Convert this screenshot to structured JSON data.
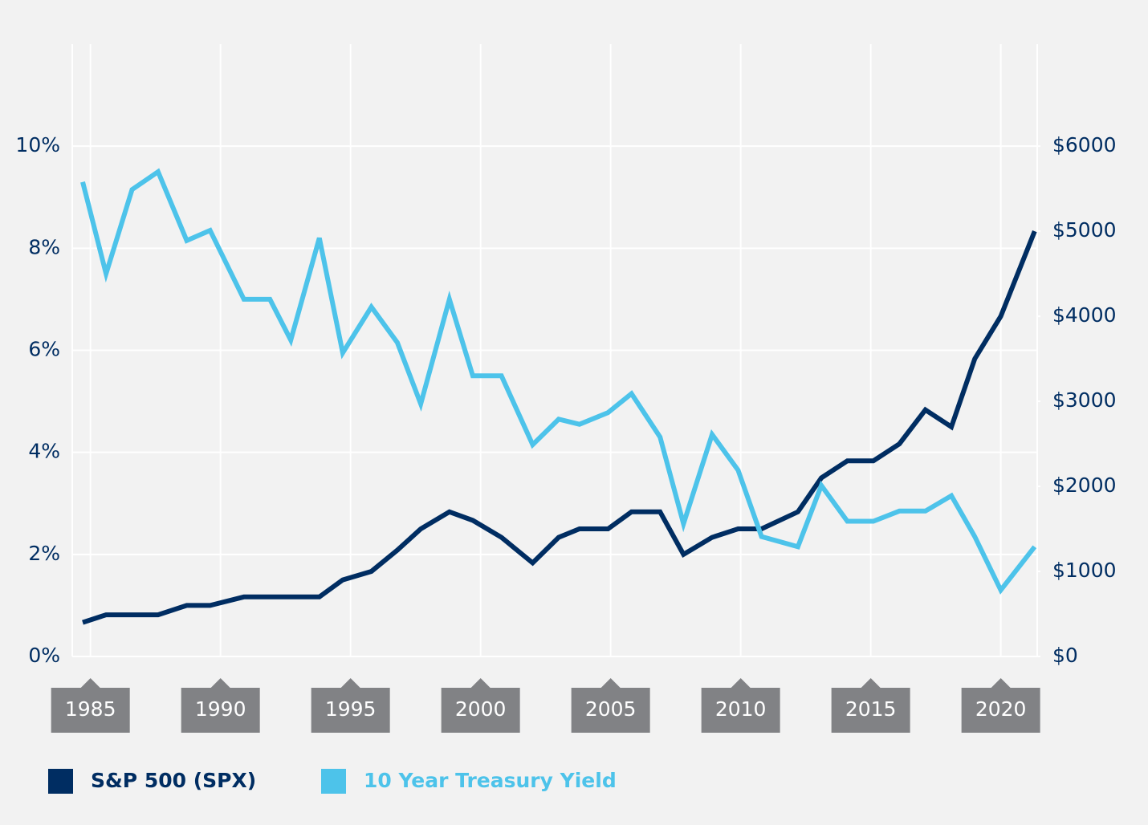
{
  "chart_data": {
    "type": "line",
    "x": [
      1984.7,
      1985.6,
      1986.6,
      1987.6,
      1988.7,
      1989.6,
      1990.9,
      1991.9,
      1992.7,
      1993.8,
      1994.7,
      1995.8,
      1996.8,
      1997.7,
      1998.8,
      1999.7,
      2000.8,
      2002.0,
      2003.0,
      2003.8,
      2004.9,
      2005.8,
      2006.9,
      2007.8,
      2008.9,
      2009.9,
      2010.8,
      2012.2,
      2013.1,
      2014.1,
      2015.1,
      2016.1,
      2017.1,
      2018.1,
      2019.0,
      2020.0,
      2021.3
    ],
    "series": [
      {
        "name": "S&P 500 (SPX)",
        "color": "#002d62",
        "axis": "y2",
        "values": [
          400,
          490,
          490,
          490,
          600,
          600,
          700,
          700,
          700,
          700,
          900,
          1000,
          1250,
          1500,
          1700,
          1600,
          1400,
          1100,
          1400,
          1500,
          1500,
          1700,
          1700,
          1200,
          1400,
          1500,
          1500,
          1700,
          2100,
          2300,
          2300,
          2500,
          2900,
          2700,
          3500,
          4000,
          5000
        ]
      },
      {
        "name": "10 Year Treasury Yield",
        "color": "#4dc3ea",
        "values": [
          9.3,
          7.5,
          9.15,
          9.5,
          8.15,
          8.35,
          7.0,
          7.0,
          6.2,
          8.2,
          5.95,
          6.85,
          6.15,
          4.95,
          7.0,
          5.5,
          5.5,
          4.15,
          4.65,
          4.55,
          4.78,
          5.15,
          4.3,
          2.6,
          4.35,
          3.65,
          2.35,
          2.15,
          3.35,
          2.65,
          2.65,
          2.85,
          2.85,
          3.15,
          2.35,
          1.3,
          2.15
        ]
      }
    ],
    "xlim": [
      1984.3,
      2021.4
    ],
    "xticks": [
      1985,
      1990,
      1995,
      2000,
      2005,
      2010,
      2015,
      2020
    ],
    "ylim": [
      0,
      12
    ],
    "yticks": [
      {
        "value": 0,
        "label": "0%"
      },
      {
        "value": 2,
        "label": "2%"
      },
      {
        "value": 4,
        "label": "4%"
      },
      {
        "value": 6,
        "label": "6%"
      },
      {
        "value": 8,
        "label": "8%"
      },
      {
        "value": 10,
        "label": "10%"
      }
    ],
    "y2lim": [
      0,
      7200
    ],
    "y2ticks": [
      {
        "value": 0,
        "label": "$0"
      },
      {
        "value": 1000,
        "label": "$1000"
      },
      {
        "value": 2000,
        "label": "$2000"
      },
      {
        "value": 3000,
        "label": "$3000"
      },
      {
        "value": 4000,
        "label": "$4000"
      },
      {
        "value": 5000,
        "label": "$5000"
      },
      {
        "value": 6000,
        "label": "$6000"
      }
    ],
    "grid": true,
    "legend": "bottom"
  }
}
